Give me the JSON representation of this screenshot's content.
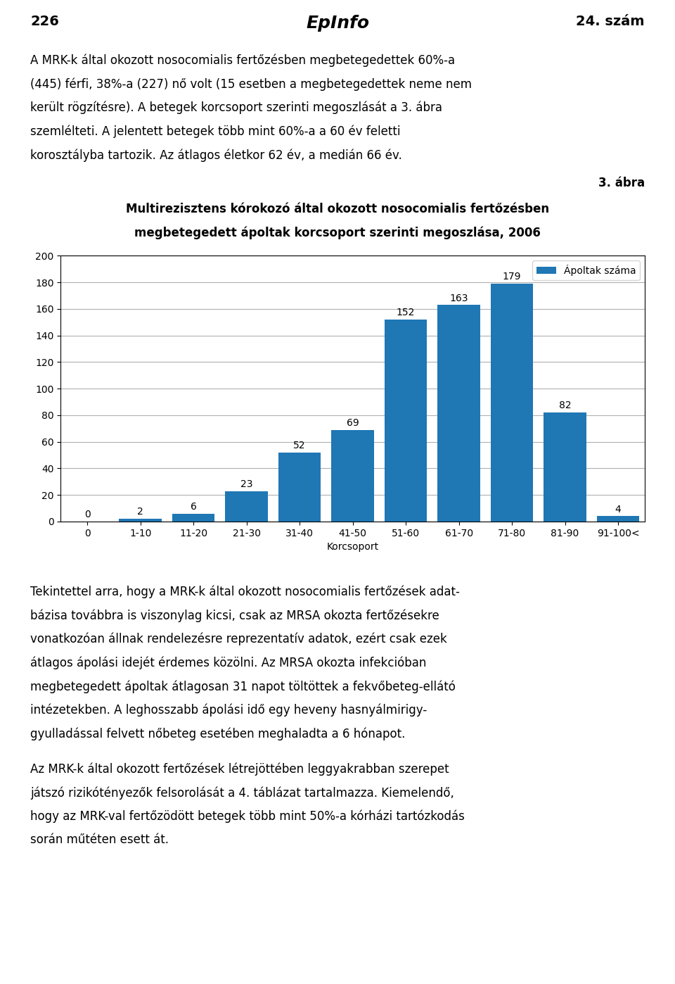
{
  "chart_data": {
    "type": "bar",
    "title": "Multirezisztens kórokozó által okozott nosocomialis fertőzésben",
    "subtitle": "megbetegedett ápoltak korcsoport szerinti megoszlása, 2006",
    "xlabel": "Korcsoport",
    "categories": [
      "0",
      "1-10",
      "11-20",
      "21-30",
      "31-40",
      "41-50",
      "51-60",
      "61-70",
      "71-80",
      "81-90",
      "91-100<"
    ],
    "series": [
      {
        "name": "Ápoltak száma",
        "values": [
          0,
          2,
          6,
          23,
          52,
          69,
          152,
          163,
          179,
          82,
          4
        ]
      }
    ],
    "ylim": [
      0,
      200
    ],
    "yticks": [
      0,
      20,
      40,
      60,
      80,
      100,
      120,
      140,
      160,
      180,
      200
    ],
    "grid": true,
    "legend": "upper right",
    "data_labels": true,
    "annotations": [
      [
        "226",
        "EpInfo",
        "24. szám"
      ],
      [
        "3. ábra"
      ],
      [
        "A MRK-k által okozott nosocomialis fertőzésben megbetegedettek 60%-a",
        "(445) férfi, 38%-a (227) nő volt (15 esetben a megbetegedettek neme nem",
        "került rögzítésre). A betegek korcsoport szerinti megoszlását a 3. ábra",
        "szemlélteti. A jelentett betegek több mint 60%-a a 60 év feletti",
        "korosztályba tartozik. Az átlagos életkor 62 év, a medián 66 év."
      ],
      [
        "Tekintettel arra, hogy a MRK-k által okozott nosocomialis fertőzések adat-",
        "bázisa továbbra is viszonylag kicsi, csak az MRSA okozta fertőzésekre",
        "vonatkozóan állnak rendelezésre reprezentatív adatok, ezért csak ezek",
        "átlagos ápolási idejét érdemes közölni. Az MRSA okozta infekcióban",
        "megbetegedett ápoltak átlagosan 31 napot töltöttek a fekvőbeteg-ellátó",
        "intézetekben. A leghosszabb ápolási idő egy heveny hasnyálmirigy-",
        "gyulladással felvett nőbeteg esetében meghaladta a 6 hónapot."
      ],
      [
        "Az MRK-k által okozott fertőzések létrejöttében leggyakrabban szerepet",
        "játszó rizikótényezők felsorolását a 4. táblázat tartalmazza. Kiemelendő,",
        "hogy az MRK-val fertőzödött betegek több mint 50%-a kórházi tartózkodás",
        "során műtéten esett át."
      ]
    ]
  }
}
